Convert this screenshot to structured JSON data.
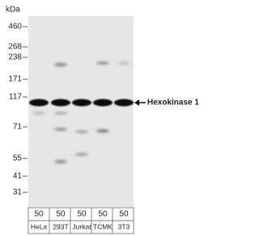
{
  "unit_label": "kDa",
  "markers": [
    "460",
    "268",
    "238",
    "171",
    "117",
    "71",
    "55",
    "41",
    "31"
  ],
  "target_label": "Hexokinase 1",
  "lanes": [
    {
      "amount": "50",
      "cell_line": "HeLa"
    },
    {
      "amount": "50",
      "cell_line": "293T"
    },
    {
      "amount": "50",
      "cell_line": "Jurkat"
    },
    {
      "amount": "50",
      "cell_line": "TCMK"
    },
    {
      "amount": "50",
      "cell_line": "3T3"
    }
  ]
}
